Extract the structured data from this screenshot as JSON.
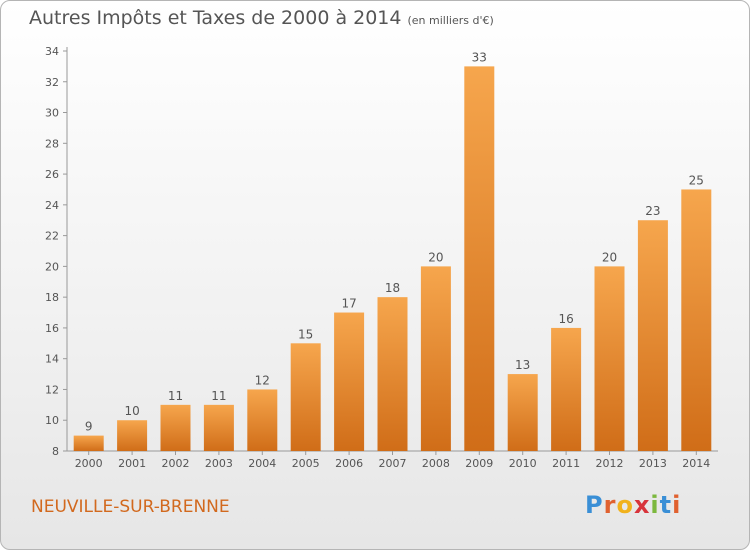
{
  "header": {
    "title": "Autres Impôts et Taxes de 2000 à 2014",
    "unit": "(en milliers d'€)"
  },
  "footer": {
    "commune": "NEUVILLE-SUR-BRENNE",
    "brand": "Proxiti",
    "brand_letter_colors": [
      "#3a8fd6",
      "#e0612f",
      "#f1b21c",
      "#d8343b",
      "#7cb83e",
      "#3a8fd6",
      "#e0612f"
    ]
  },
  "chart_data": {
    "type": "bar",
    "title": "Autres Impôts et Taxes de 2000 à 2014",
    "categories": [
      "2000",
      "2001",
      "2002",
      "2003",
      "2004",
      "2005",
      "2006",
      "2007",
      "2008",
      "2009",
      "2010",
      "2011",
      "2012",
      "2013",
      "2014"
    ],
    "values": [
      9,
      10,
      11,
      11,
      12,
      15,
      17,
      18,
      20,
      33,
      13,
      16,
      20,
      23,
      25
    ],
    "ylim": [
      8,
      34
    ],
    "yticks": [
      8,
      10,
      12,
      14,
      16,
      18,
      20,
      22,
      24,
      26,
      28,
      30,
      32,
      34
    ],
    "grid": false,
    "bar_colors": {
      "top": "#f6a64d",
      "bottom": "#d06d18"
    },
    "axis_color": "#999999",
    "text_color": "#555555"
  }
}
